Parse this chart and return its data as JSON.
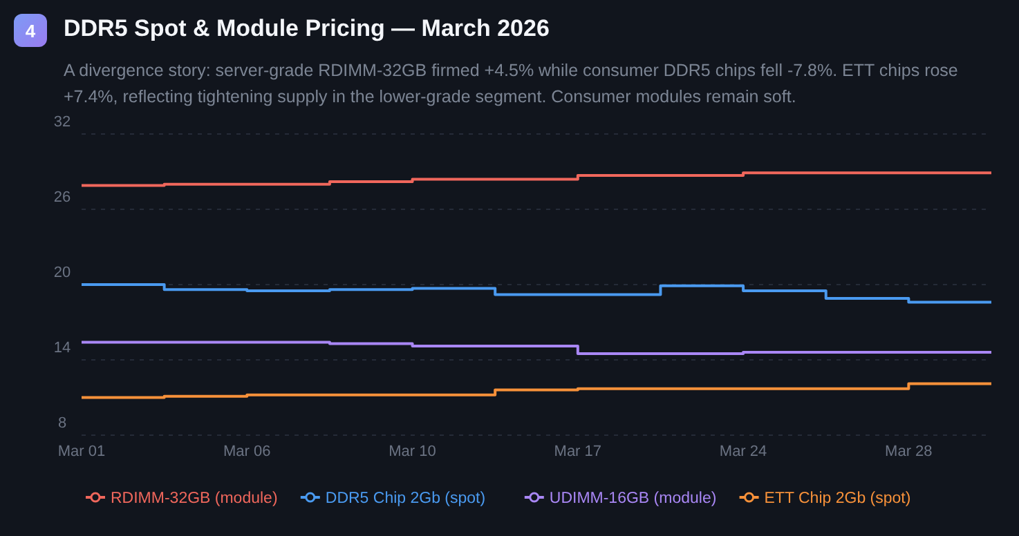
{
  "chart_data": {
    "type": "step",
    "title": "DDR5 Spot & Module Pricing — March 2026",
    "subtitle": "A divergence story: server-grade RDIMM-32GB firmed +4.5% while consumer DDR5 chips fell -7.8%. ETT chips rose +7.4%, reflecting tightening supply in the lower-grade segment. Consumer modules remain soft.",
    "annotations": [
      "4"
    ],
    "categories": [
      "Mar 01",
      null,
      "Mar 06",
      null,
      "Mar 10",
      null,
      "Mar 17",
      null,
      "Mar 24",
      null,
      "Mar 28",
      null
    ],
    "series": [
      {
        "name": "RDIMM-32GB (module)",
        "color": "#f0675c",
        "values": [
          27.9,
          28.0,
          28.0,
          28.2,
          28.4,
          28.4,
          28.7,
          28.7,
          28.9,
          28.9,
          28.9,
          28.9
        ]
      },
      {
        "name": "DDR5 Chip 2Gb (spot)",
        "color": "#4a9af0",
        "values": [
          20.0,
          19.6,
          19.5,
          19.6,
          19.7,
          19.2,
          19.2,
          19.9,
          19.5,
          18.9,
          18.6,
          18.6
        ]
      },
      {
        "name": "UDIMM-16GB (module)",
        "color": "#a987f5",
        "values": [
          15.4,
          15.4,
          15.4,
          15.3,
          15.1,
          15.1,
          14.5,
          14.5,
          14.6,
          14.6,
          14.6,
          14.6
        ]
      },
      {
        "name": "ETT Chip 2Gb (spot)",
        "color": "#f7913a",
        "values": [
          11.0,
          11.1,
          11.2,
          11.2,
          11.2,
          11.6,
          11.7,
          11.7,
          11.7,
          11.7,
          12.1,
          12.1
        ]
      }
    ],
    "ylim": [
      8,
      32
    ],
    "yticks": [
      8,
      14,
      20,
      26,
      32
    ],
    "grid": "y",
    "legend": "bottom"
  }
}
